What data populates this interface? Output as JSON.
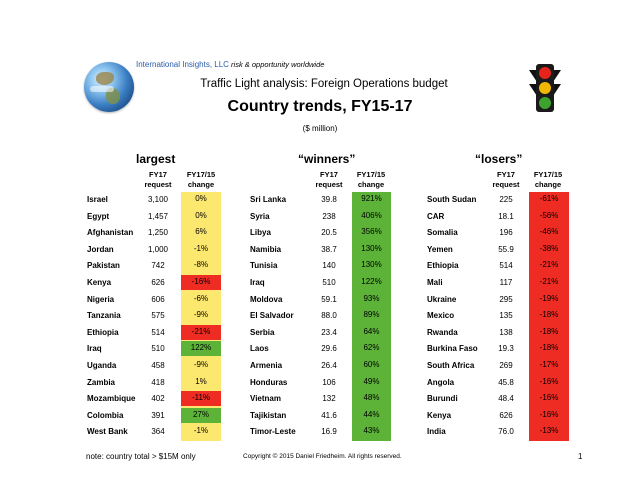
{
  "brand": {
    "name": "International Insights, LLC",
    "tagline": "risk & opportunity worldwide"
  },
  "header": {
    "subtitle": "Traffic Light analysis:  Foreign Operations budget",
    "title": "Country trends, FY15-17",
    "units": "($ million)"
  },
  "icons": {
    "logo": "globe-icon",
    "traffic_light": "traffic-light-icon"
  },
  "colors": {
    "yellow": "#fde86f",
    "green": "#5cb338",
    "red": "#ef2c24",
    "brand_blue": "#2a5caa"
  },
  "columns": {
    "request_header": "FY17 request",
    "change_header": "FY17/15 change"
  },
  "tables": {
    "largest": {
      "heading": "largest",
      "band_color": "yellow",
      "rows": [
        {
          "country": "Israel",
          "request": "3,100",
          "change": "0%",
          "highlight": ""
        },
        {
          "country": "Egypt",
          "request": "1,457",
          "change": "0%",
          "highlight": ""
        },
        {
          "country": "Afghanistan",
          "request": "1,250",
          "change": "6%",
          "highlight": ""
        },
        {
          "country": "Jordan",
          "request": "1,000",
          "change": "-1%",
          "highlight": ""
        },
        {
          "country": "Pakistan",
          "request": "742",
          "change": "-8%",
          "highlight": ""
        },
        {
          "country": "Kenya",
          "request": "626",
          "change": "-16%",
          "highlight": "red"
        },
        {
          "country": "Nigeria",
          "request": "606",
          "change": "-6%",
          "highlight": ""
        },
        {
          "country": "Tanzania",
          "request": "575",
          "change": "-9%",
          "highlight": ""
        },
        {
          "country": "Ethiopia",
          "request": "514",
          "change": "-21%",
          "highlight": "red"
        },
        {
          "country": "Iraq",
          "request": "510",
          "change": "122%",
          "highlight": "green"
        },
        {
          "country": "Uganda",
          "request": "458",
          "change": "-9%",
          "highlight": ""
        },
        {
          "country": "Zambia",
          "request": "418",
          "change": "1%",
          "highlight": ""
        },
        {
          "country": "Mozambique",
          "request": "402",
          "change": "-11%",
          "highlight": "red"
        },
        {
          "country": "Colombia",
          "request": "391",
          "change": "27%",
          "highlight": "green"
        },
        {
          "country": "West Bank",
          "request": "364",
          "change": "-1%",
          "highlight": ""
        }
      ]
    },
    "winners": {
      "heading": "“winners”",
      "band_color": "green",
      "rows": [
        {
          "country": "Sri Lanka",
          "request": "39.8",
          "change": "921%",
          "highlight": ""
        },
        {
          "country": "Syria",
          "request": "238",
          "change": "406%",
          "highlight": ""
        },
        {
          "country": "Libya",
          "request": "20.5",
          "change": "356%",
          "highlight": ""
        },
        {
          "country": "Namibia",
          "request": "38.7",
          "change": "130%",
          "highlight": ""
        },
        {
          "country": "Tunisia",
          "request": "140",
          "change": "130%",
          "highlight": ""
        },
        {
          "country": "Iraq",
          "request": "510",
          "change": "122%",
          "highlight": ""
        },
        {
          "country": "Moldova",
          "request": "59.1",
          "change": "93%",
          "highlight": ""
        },
        {
          "country": "El Salvador",
          "request": "88.0",
          "change": "89%",
          "highlight": ""
        },
        {
          "country": "Serbia",
          "request": "23.4",
          "change": "64%",
          "highlight": ""
        },
        {
          "country": "Laos",
          "request": "29.6",
          "change": "62%",
          "highlight": ""
        },
        {
          "country": "Armenia",
          "request": "26.4",
          "change": "60%",
          "highlight": ""
        },
        {
          "country": "Honduras",
          "request": "106",
          "change": "49%",
          "highlight": ""
        },
        {
          "country": "Vietnam",
          "request": "132",
          "change": "48%",
          "highlight": ""
        },
        {
          "country": "Tajikistan",
          "request": "41.6",
          "change": "44%",
          "highlight": ""
        },
        {
          "country": "Timor-Leste",
          "request": "16.9",
          "change": "43%",
          "highlight": ""
        }
      ]
    },
    "losers": {
      "heading": "“losers”",
      "band_color": "red",
      "rows": [
        {
          "country": "South Sudan",
          "request": "225",
          "change": "-61%",
          "highlight": ""
        },
        {
          "country": "CAR",
          "request": "18.1",
          "change": "-56%",
          "highlight": ""
        },
        {
          "country": "Somalia",
          "request": "196",
          "change": "-46%",
          "highlight": ""
        },
        {
          "country": "Yemen",
          "request": "55.9",
          "change": "-38%",
          "highlight": ""
        },
        {
          "country": "Ethiopia",
          "request": "514",
          "change": "-21%",
          "highlight": ""
        },
        {
          "country": "Mali",
          "request": "117",
          "change": "-21%",
          "highlight": ""
        },
        {
          "country": "Ukraine",
          "request": "295",
          "change": "-19%",
          "highlight": ""
        },
        {
          "country": "Mexico",
          "request": "135",
          "change": "-18%",
          "highlight": ""
        },
        {
          "country": "Rwanda",
          "request": "138",
          "change": "-18%",
          "highlight": ""
        },
        {
          "country": "Burkina Faso",
          "request": "19.3",
          "change": "-18%",
          "highlight": ""
        },
        {
          "country": "South Africa",
          "request": "269",
          "change": "-17%",
          "highlight": ""
        },
        {
          "country": "Angola",
          "request": "45.8",
          "change": "-16%",
          "highlight": ""
        },
        {
          "country": "Burundi",
          "request": "48.4",
          "change": "-16%",
          "highlight": ""
        },
        {
          "country": "Kenya",
          "request": "626",
          "change": "-16%",
          "highlight": ""
        },
        {
          "country": "India",
          "request": "76.0",
          "change": "-13%",
          "highlight": ""
        }
      ]
    }
  },
  "footer": {
    "note": "note:  country total > $15M only",
    "copyright": "Copyright © 2015 Daniel Friedheim. All rights reserved.",
    "page_number": "1"
  }
}
